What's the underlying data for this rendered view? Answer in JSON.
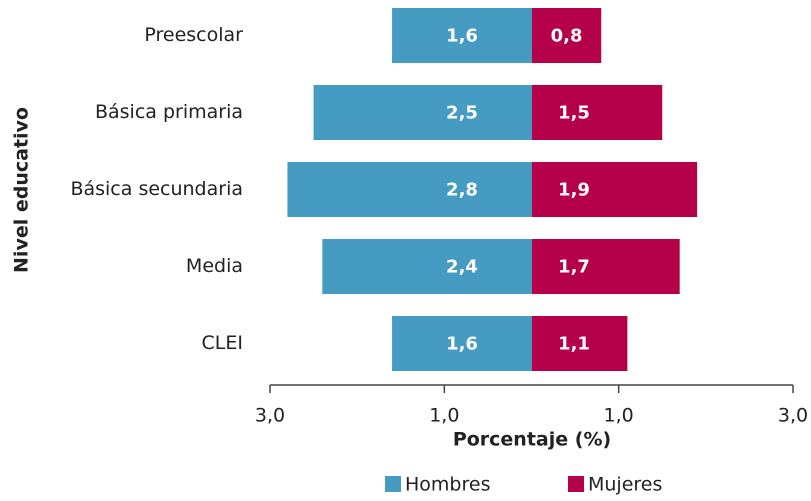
{
  "chart_data": {
    "type": "bar",
    "orientation": "horizontal",
    "layout": "pyramid",
    "categories": [
      "Preescolar",
      "Básica primaria",
      "Básica secundaria",
      "Media",
      "CLEI"
    ],
    "series": [
      {
        "name": "Hombres",
        "color": "#459bc1",
        "values": [
          1.6,
          2.5,
          2.8,
          2.4,
          1.6
        ],
        "value_labels": [
          "1,6",
          "2,5",
          "2,8",
          "2,4",
          "1,6"
        ]
      },
      {
        "name": "Mujeres",
        "color": "#b5004a",
        "values": [
          0.8,
          1.5,
          1.9,
          1.7,
          1.1
        ],
        "value_labels": [
          "0,8",
          "1,5",
          "1,9",
          "1,7",
          "1,1"
        ]
      }
    ],
    "xlim": [
      -3,
      3
    ],
    "xticks": [
      {
        "value": -3,
        "label": "3,0"
      },
      {
        "value": -1,
        "label": "1,0"
      },
      {
        "value": 1,
        "label": "1,0"
      },
      {
        "value": 3,
        "label": "3,0"
      }
    ],
    "xlabel": "Porcentaje (%)",
    "ylabel": "Nivel educativo",
    "legend": "bottom"
  }
}
